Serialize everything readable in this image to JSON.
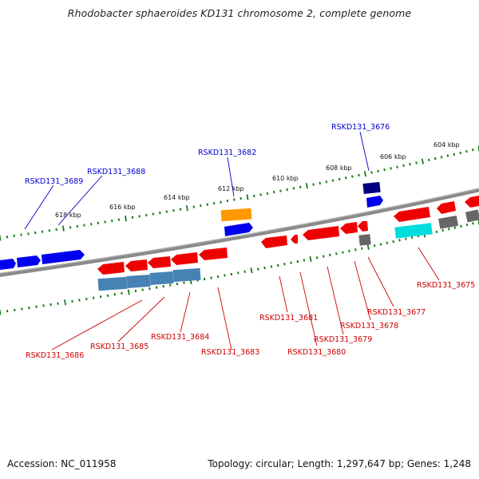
{
  "title": "Rhodobacter sphaeroides KD131 chromosome 2, complete genome",
  "footer": {
    "accession": "Accession: NC_011958",
    "stats": "Topology: circular; Length: 1,297,647 bp; Genes: 1,248"
  },
  "colors": {
    "forward_gene": "#0000ee",
    "reverse_gene": "#ee0000",
    "forward_label": "#0000cc",
    "reverse_label": "#cc0000",
    "backbone": "#8a8a8a",
    "tick": "#1a7a1a",
    "orange_feature": "#ff9900",
    "cyan_feature": "#00dddd",
    "steelblue_feature": "#4682b4",
    "navy_feature": "#000080",
    "gray_feature": "#666666"
  },
  "ticks": {
    "outer": [
      "604 kbp",
      "606 kbp",
      "608 kbp",
      "610 kbp",
      "612 kbp",
      "614 kbp",
      "616 kbp",
      "618 kbp"
    ]
  },
  "forward_labels": [
    "RSKD131_3676",
    "RSKD131_3682",
    "RSKD131_3688",
    "RSKD131_3689"
  ],
  "reverse_labels": [
    "RSKD131_3675",
    "RSKD131_3677",
    "RSKD131_3678",
    "RSKD131_3679",
    "RSKD131_3680",
    "RSKD131_3681",
    "RSKD131_3683",
    "RSKD131_3684",
    "RSKD131_3685",
    "RSKD131_3686"
  ]
}
